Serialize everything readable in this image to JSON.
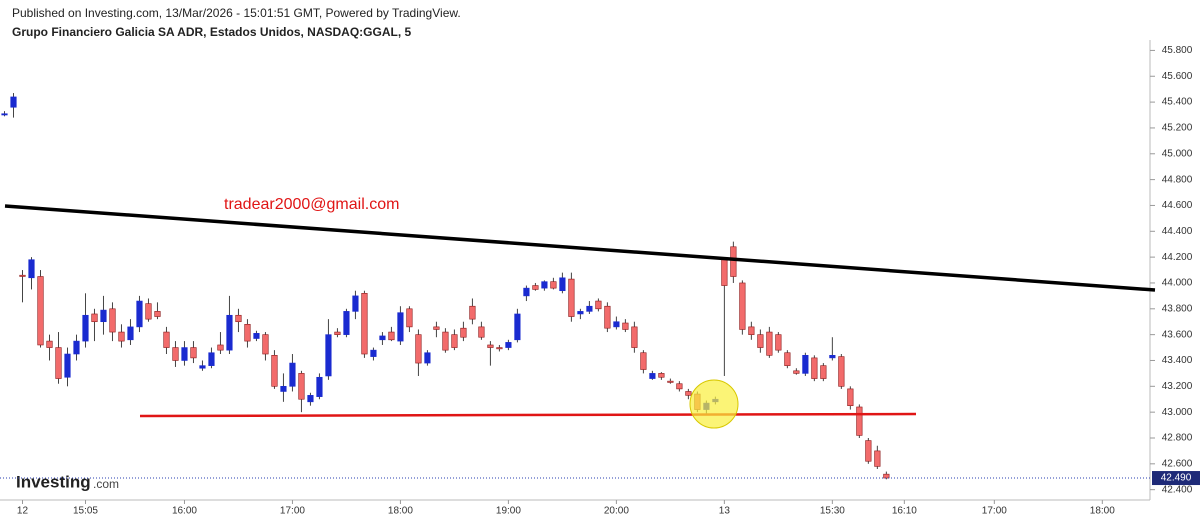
{
  "chart_data": {
    "type": "candlestick",
    "title": "Published on Investing.com, 13/Mar/2026 - 15:01:51 GMT, Powered by TradingView.",
    "subtitle": "Grupo Financiero Galicia SA ADR, Estados Unidos, NASDAQ:GGAL, 5",
    "annotation": "tradear2000@gmail.com",
    "watermark": "Investing",
    "watermark_suffix": ".com",
    "up_color": "#1a2bd0",
    "down_color": "#f26b6b",
    "x": [
      -2,
      -1,
      0,
      1,
      2,
      3,
      4,
      5,
      6,
      7,
      8,
      9,
      10,
      11,
      12,
      13,
      14,
      15,
      16,
      17,
      18,
      19,
      20,
      21,
      22,
      23,
      24,
      25,
      26,
      27,
      28,
      29,
      30,
      31,
      32,
      33,
      34,
      35,
      36,
      37,
      38,
      39,
      40,
      41,
      42,
      43,
      44,
      45,
      46,
      47,
      48,
      49,
      50,
      51,
      52,
      53,
      54,
      55,
      56,
      57,
      58,
      59,
      60,
      61,
      62,
      63,
      64,
      65,
      66,
      67,
      68,
      69,
      70,
      71,
      72,
      73,
      74,
      75,
      76,
      77,
      78,
      79,
      80,
      81,
      82,
      83,
      84,
      85,
      86,
      87,
      88,
      89,
      90,
      91,
      92,
      93,
      94,
      95,
      96
    ],
    "open": [
      45.3,
      45.36,
      44.06,
      44.04,
      44.05,
      43.55,
      43.5,
      43.27,
      43.45,
      43.55,
      43.76,
      43.7,
      43.8,
      43.62,
      43.56,
      43.66,
      43.84,
      43.78,
      43.62,
      43.5,
      43.4,
      43.5,
      43.34,
      43.36,
      43.52,
      43.48,
      43.75,
      43.68,
      43.57,
      43.6,
      43.44,
      43.16,
      43.2,
      43.3,
      43.08,
      43.12,
      43.28,
      43.62,
      43.6,
      43.78,
      43.92,
      43.43,
      43.56,
      43.62,
      43.55,
      43.8,
      43.6,
      43.38,
      43.66,
      43.62,
      43.6,
      43.65,
      43.82,
      43.66,
      43.52,
      43.5,
      43.5,
      43.56,
      43.9,
      43.98,
      43.96,
      44.01,
      43.94,
      44.03,
      43.76,
      43.78,
      43.86,
      43.82,
      43.66,
      43.69,
      43.66,
      43.46,
      43.26,
      43.3,
      43.24,
      43.22,
      43.16,
      43.14,
      43.02,
      43.08,
      44.18,
      44.28,
      44.0,
      43.66,
      43.6,
      43.62,
      43.6,
      43.46,
      43.32,
      43.3,
      43.42,
      43.36,
      43.42,
      43.43,
      43.18,
      43.04,
      42.78,
      42.7,
      42.52
    ],
    "high": [
      45.33,
      45.47,
      44.1,
      44.2,
      44.1,
      43.6,
      43.62,
      43.5,
      43.6,
      43.92,
      43.8,
      43.9,
      43.85,
      43.68,
      43.72,
      43.9,
      43.88,
      43.85,
      43.66,
      43.55,
      43.55,
      43.55,
      43.4,
      43.5,
      43.62,
      43.9,
      43.8,
      43.72,
      43.63,
      43.62,
      43.48,
      43.3,
      43.45,
      43.32,
      43.15,
      43.3,
      43.72,
      43.65,
      43.8,
      43.94,
      43.94,
      43.5,
      43.62,
      43.66,
      43.82,
      43.82,
      43.64,
      43.48,
      43.7,
      43.65,
      43.64,
      43.7,
      43.88,
      43.7,
      43.55,
      43.52,
      43.56,
      43.8,
      43.98,
      44.0,
      44.02,
      44.04,
      44.08,
      44.08,
      43.8,
      43.86,
      43.88,
      43.85,
      43.74,
      43.72,
      43.7,
      43.48,
      43.32,
      43.31,
      43.26,
      43.24,
      43.18,
      43.16,
      43.09,
      43.12,
      44.2,
      44.32,
      44.02,
      43.7,
      43.64,
      43.66,
      43.62,
      43.48,
      43.34,
      43.46,
      43.44,
      43.38,
      43.58,
      43.45,
      43.2,
      43.06,
      42.8,
      42.74,
      42.54
    ],
    "low": [
      45.29,
      45.28,
      43.85,
      43.95,
      43.5,
      43.4,
      43.22,
      43.2,
      43.4,
      43.5,
      43.55,
      43.6,
      43.55,
      43.5,
      43.52,
      43.62,
      43.7,
      43.72,
      43.45,
      43.35,
      43.36,
      43.38,
      43.32,
      43.34,
      43.45,
      43.45,
      43.62,
      43.5,
      43.55,
      43.4,
      43.18,
      43.08,
      43.16,
      43.0,
      43.05,
      43.1,
      43.25,
      43.58,
      43.58,
      43.72,
      43.42,
      43.4,
      43.52,
      43.55,
      43.52,
      43.62,
      43.28,
      43.36,
      43.58,
      43.46,
      43.48,
      43.55,
      43.68,
      43.56,
      43.36,
      43.47,
      43.48,
      43.54,
      43.86,
      43.94,
      43.94,
      43.95,
      43.92,
      43.7,
      43.72,
      43.76,
      43.78,
      43.62,
      43.64,
      43.62,
      43.46,
      43.3,
      43.25,
      43.25,
      43.22,
      43.16,
      43.1,
      43.0,
      42.99,
      43.06,
      43.28,
      44.0,
      43.6,
      43.56,
      43.46,
      43.42,
      43.46,
      43.34,
      43.29,
      43.28,
      43.24,
      43.24,
      43.4,
      43.18,
      43.02,
      42.8,
      42.6,
      42.56,
      42.48
    ],
    "close": [
      45.31,
      45.44,
      44.05,
      44.18,
      43.52,
      43.5,
      43.26,
      43.45,
      43.55,
      43.75,
      43.7,
      43.79,
      43.62,
      43.55,
      43.66,
      43.86,
      43.72,
      43.74,
      43.5,
      43.4,
      43.5,
      43.42,
      43.36,
      43.46,
      43.48,
      43.75,
      43.7,
      43.55,
      43.61,
      43.45,
      43.2,
      43.2,
      43.38,
      43.1,
      43.13,
      43.27,
      43.6,
      43.6,
      43.78,
      43.9,
      43.45,
      43.48,
      43.59,
      43.56,
      43.77,
      43.66,
      43.38,
      43.46,
      43.64,
      43.48,
      43.5,
      43.58,
      43.72,
      43.58,
      43.5,
      43.49,
      43.54,
      43.76,
      43.96,
      43.95,
      44.01,
      43.96,
      44.04,
      43.74,
      43.78,
      43.82,
      43.8,
      43.65,
      43.7,
      43.64,
      43.5,
      43.33,
      43.3,
      43.27,
      43.23,
      43.18,
      43.13,
      43.02,
      43.07,
      43.1,
      43.98,
      44.05,
      43.64,
      43.6,
      43.5,
      43.44,
      43.48,
      43.36,
      43.3,
      43.44,
      43.26,
      43.26,
      43.44,
      43.2,
      43.05,
      42.82,
      42.62,
      42.58,
      42.49
    ],
    "xlim": [
      -2.5,
      125.3
    ],
    "xticks": [
      {
        "value": 0,
        "label": "12"
      },
      {
        "value": 7,
        "label": "15:05"
      },
      {
        "value": 18,
        "label": "16:00"
      },
      {
        "value": 30,
        "label": "17:00"
      },
      {
        "value": 42,
        "label": "18:00"
      },
      {
        "value": 54,
        "label": "19:00"
      },
      {
        "value": 66,
        "label": "20:00"
      },
      {
        "value": 78,
        "label": "13"
      },
      {
        "value": 90,
        "label": "15:30"
      },
      {
        "value": 98,
        "label": "16:10"
      },
      {
        "value": 108,
        "label": "17:00"
      },
      {
        "value": 120,
        "label": "18:00"
      }
    ],
    "ylim": [
      42.32,
      46.02
    ],
    "yticks": [
      {
        "value": 42.4,
        "label": "42.400"
      },
      {
        "value": 42.6,
        "label": "42.600"
      },
      {
        "value": 42.8,
        "label": "42.800"
      },
      {
        "value": 43.0,
        "label": "43.000"
      },
      {
        "value": 43.2,
        "label": "43.200"
      },
      {
        "value": 43.4,
        "label": "43.400"
      },
      {
        "value": 43.6,
        "label": "43.600"
      },
      {
        "value": 43.8,
        "label": "43.800"
      },
      {
        "value": 44.0,
        "label": "44.000"
      },
      {
        "value": 44.2,
        "label": "44.200"
      },
      {
        "value": 44.4,
        "label": "44.400"
      },
      {
        "value": 44.6,
        "label": "44.600"
      },
      {
        "value": 44.8,
        "label": "44.800"
      },
      {
        "value": 45.0,
        "label": "45.000"
      },
      {
        "value": 45.2,
        "label": "45.200"
      },
      {
        "value": 45.4,
        "label": "45.400"
      },
      {
        "value": 45.6,
        "label": "45.600"
      },
      {
        "value": 45.8,
        "label": "45.800"
      }
    ],
    "last_value": 42.49,
    "last_value_label": "42.490"
  }
}
